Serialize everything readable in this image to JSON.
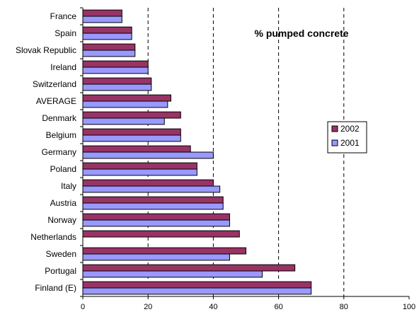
{
  "chart_data": {
    "type": "bar",
    "orientation": "horizontal",
    "title": "% pumped concrete",
    "categories": [
      "France",
      "Spain",
      "Slovak Republic",
      "Ireland",
      "Switzerland",
      "AVERAGE",
      "Denmark",
      "Belgium",
      "Germany",
      "Poland",
      "Italy",
      "Austria",
      "Norway",
      "Netherlands",
      "Sweden",
      "Portugal",
      "Finland (E)"
    ],
    "series": [
      {
        "name": "2002",
        "color": "#993366",
        "values": [
          12,
          15,
          16,
          20,
          21,
          27,
          30,
          30,
          33,
          35,
          40,
          43,
          45,
          48,
          50,
          65,
          70
        ]
      },
      {
        "name": "2001",
        "color": "#9999ff",
        "values": [
          12,
          15,
          16,
          20,
          21,
          26,
          25,
          30,
          40,
          35,
          42,
          43,
          45,
          null,
          45,
          55,
          70
        ]
      }
    ],
    "xlim": [
      0,
      100
    ],
    "xticks": [
      0,
      20,
      40,
      60,
      80,
      100
    ],
    "gridlines": [
      20,
      40,
      60,
      80
    ],
    "grid_style": "dashed",
    "legend_position": "right"
  }
}
